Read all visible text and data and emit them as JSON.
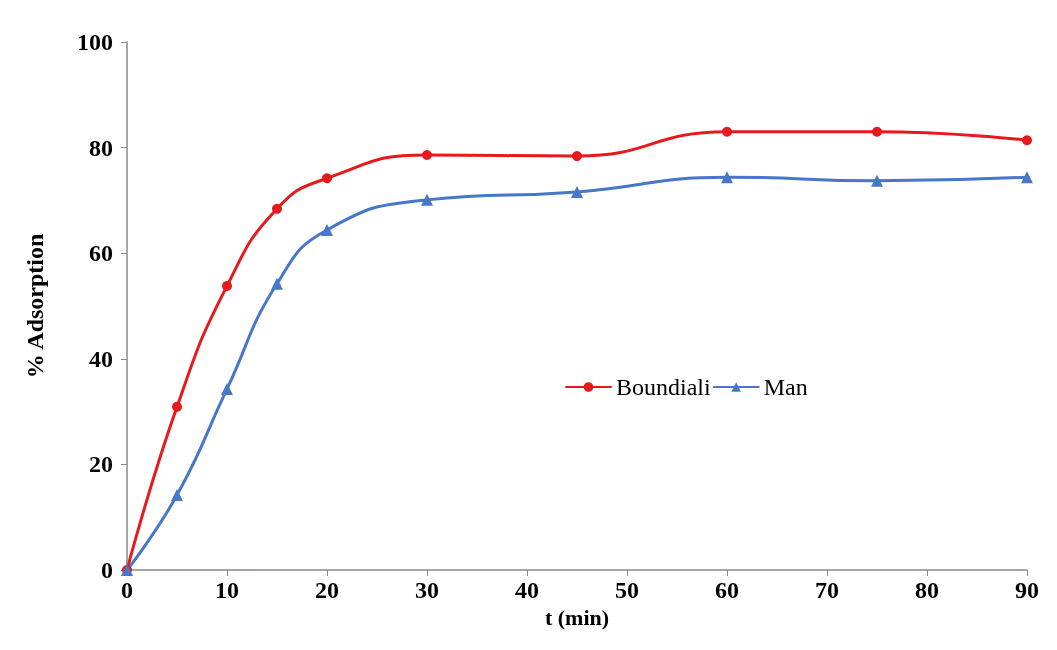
{
  "chart_data": {
    "type": "line",
    "xlabel": "t (min)",
    "ylabel": "% Adsorption",
    "x": [
      0,
      5,
      10,
      15,
      20,
      30,
      45,
      60,
      75,
      90
    ],
    "series": [
      {
        "name": "Boundiali",
        "color": "#e8191d",
        "marker": "circle",
        "values": [
          0,
          30.9,
          53.8,
          68.4,
          74.2,
          78.6,
          78.4,
          83.0,
          83.0,
          81.4
        ]
      },
      {
        "name": "Man",
        "color": "#4677c8",
        "marker": "triangle",
        "values": [
          0,
          14.2,
          34.3,
          54.2,
          64.4,
          70.1,
          71.6,
          74.4,
          73.7,
          74.4
        ]
      }
    ],
    "xlim": [
      0,
      90
    ],
    "xticks": [
      0,
      10,
      20,
      30,
      40,
      50,
      60,
      70,
      80,
      90
    ],
    "ylim": [
      0,
      100
    ],
    "yticks": [
      0,
      20,
      40,
      60,
      80,
      100
    ],
    "grid": false,
    "legend": "right",
    "line_style": "solid"
  }
}
